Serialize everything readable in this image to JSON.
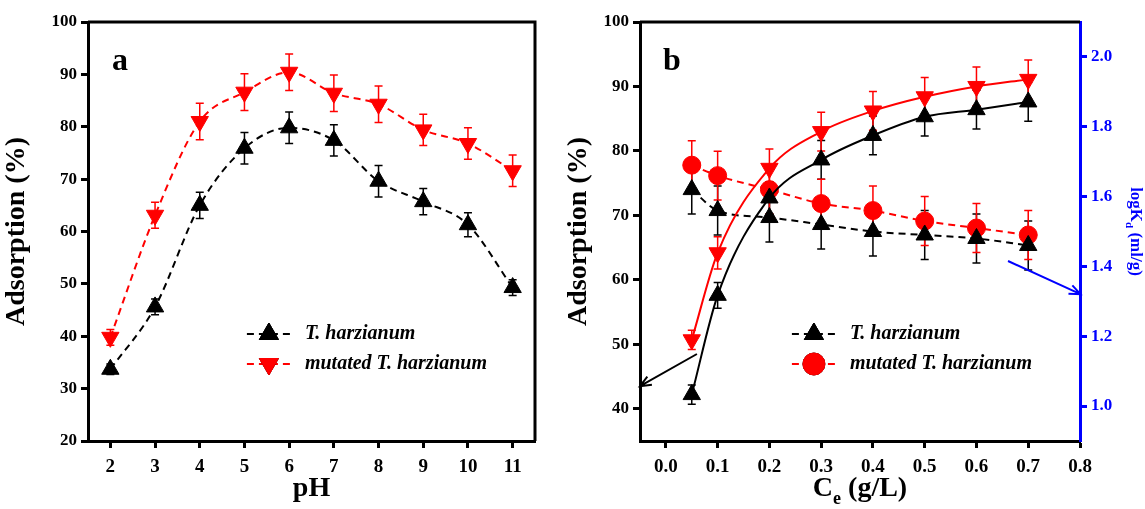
{
  "chart_data": [
    {
      "type": "line",
      "xlabel": "pH",
      "ylabel": "Adsorption (%)",
      "annotations": [
        "a"
      ],
      "x": [
        2,
        3,
        4,
        5,
        6,
        7,
        8,
        9,
        10,
        11
      ],
      "xlim": [
        1.5,
        11.5
      ],
      "xticks": [
        2,
        3,
        4,
        5,
        6,
        7,
        8,
        9,
        10,
        11
      ],
      "ylim": [
        20,
        100
      ],
      "yticks": [
        20,
        30,
        40,
        50,
        60,
        70,
        80,
        90,
        100
      ],
      "legend": "bottom right",
      "line_style": "dashed",
      "series": [
        {
          "name": "T. harzianum",
          "color": "#000000",
          "marker": "triangle",
          "values": [
            33.7,
            45.6,
            65,
            75.9,
            79.8,
            77.4,
            69.6,
            65.7,
            61.3,
            49.3
          ],
          "errors": [
            1,
            1.5,
            2.5,
            3,
            3,
            3,
            3,
            2.5,
            2.3,
            1.5
          ]
        },
        {
          "name": "mutated T. harzianum",
          "color": "#ff0000",
          "marker": "triangle-down",
          "values": [
            39.8,
            63.1,
            81,
            86.6,
            90.4,
            86.4,
            84.3,
            79.4,
            76.8,
            71.6
          ],
          "errors": [
            1.5,
            2.5,
            3.5,
            3.5,
            3.5,
            3.5,
            3.5,
            3,
            3,
            3
          ]
        }
      ]
    },
    {
      "type": "line",
      "xlabel": "C$_{e}$ (g/L)",
      "ylabel": "Adsorption (%)",
      "y2label": "logK$_{d}$ (ml/g)",
      "annotations": [
        "b"
      ],
      "x": [
        0.05,
        0.1,
        0.2,
        0.3,
        0.4,
        0.5,
        0.6,
        0.7
      ],
      "xlim": [
        -0.05,
        0.8
      ],
      "xticks": [
        {
          "value": 0,
          "label": "0.0"
        },
        0.1,
        0.2,
        0.3,
        0.4,
        0.5,
        0.6,
        0.7,
        0.8
      ],
      "ylim": [
        35,
        100
      ],
      "yticks": [
        40,
        50,
        60,
        70,
        80,
        90,
        100
      ],
      "y2lim": [
        0.9,
        2.1
      ],
      "y2ticks": [
        {
          "value": 1,
          "label": "1.0"
        },
        1.2,
        1.4,
        1.6,
        1.8,
        {
          "value": 2,
          "label": "2.0"
        }
      ],
      "legend": "bottom right",
      "series": [
        {
          "color": "#000000",
          "marker": "triangle",
          "line_style": "solid",
          "values": [
            42.2,
            57.6,
            72.7,
            78.6,
            82.4,
            85.3,
            86.4,
            87.6
          ],
          "errors": [
            1.5,
            2,
            2.5,
            3,
            3,
            3,
            3,
            3
          ]
        },
        {
          "color": "#ff0000",
          "marker": "triangle-down",
          "line_style": "solid",
          "values": [
            50.7,
            64.2,
            77.3,
            83,
            86.2,
            88.4,
            90,
            91.1
          ],
          "errors": [
            1.5,
            2.5,
            3,
            3,
            3,
            3,
            3,
            3
          ]
        },
        {
          "name": "T. harzianum",
          "color": "#000000",
          "marker": "triangle",
          "line_style": "dashed",
          "axis": "y2",
          "values": [
            1.62,
            1.56,
            1.54,
            1.52,
            1.5,
            1.49,
            1.48,
            1.46
          ],
          "errors": [
            0.07,
            0.07,
            0.07,
            0.07,
            0.07,
            0.07,
            0.07,
            0.07
          ]
        },
        {
          "name": "mutated T. harzianum",
          "color": "#ff0000",
          "marker": "circle",
          "line_style": "dashed",
          "axis": "y2",
          "values": [
            1.69,
            1.66,
            1.62,
            1.58,
            1.56,
            1.53,
            1.51,
            1.49
          ],
          "errors": [
            0.07,
            0.07,
            0.07,
            0.07,
            0.07,
            0.07,
            0.07,
            0.07
          ]
        }
      ]
    }
  ]
}
